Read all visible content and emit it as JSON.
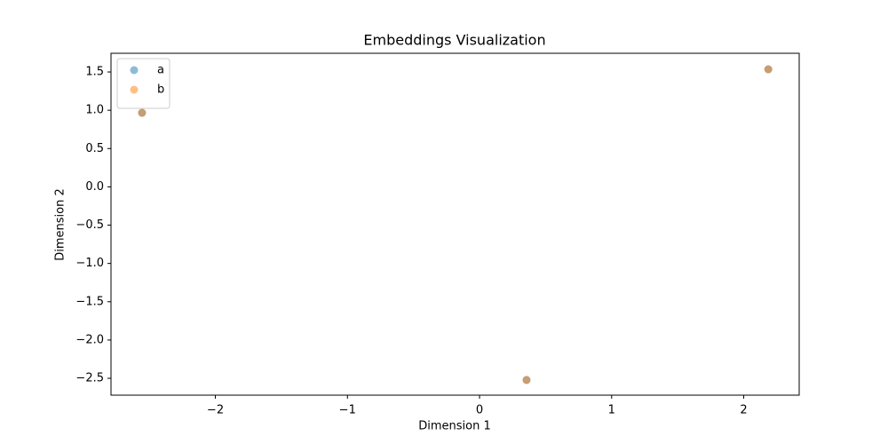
{
  "chart_data": {
    "type": "scatter",
    "title": "Embeddings Visualization",
    "x_label": "Dimension 1",
    "y_label": "Dimension 2",
    "series": [
      {
        "name": "a",
        "color": "#1f77b4",
        "x": [
          -2.555,
          2.186,
          0.356
        ],
        "values": [
          0.967,
          1.535,
          -2.522
        ]
      },
      {
        "name": "b",
        "color": "#ff7f0e",
        "x": [
          -2.555,
          2.186,
          0.356
        ],
        "values": [
          0.967,
          1.535,
          -2.522
        ]
      }
    ],
    "alpha": 0.5,
    "xlim": [
      -2.79,
      2.42
    ],
    "xticks": [
      {
        "value": -2,
        "label": "−2"
      },
      {
        "value": -1,
        "label": "−1"
      },
      0,
      1,
      2
    ],
    "ylim": [
      -2.72,
      1.744
    ],
    "yticks": [
      {
        "value": -2.5,
        "label": "−2.5"
      },
      {
        "value": -2.0,
        "label": "−2.0"
      },
      {
        "value": -1.5,
        "label": "−1.5"
      },
      {
        "value": -1.0,
        "label": "−1.0"
      },
      {
        "value": -0.5,
        "label": "−0.5"
      },
      {
        "value": 0,
        "label": "0.0"
      },
      {
        "value": 0.5,
        "label": "0.5"
      },
      {
        "value": 1.0,
        "label": "1.0"
      },
      {
        "value": 1.5,
        "label": "1.5"
      }
    ],
    "grid": false,
    "legend": "upper left"
  }
}
